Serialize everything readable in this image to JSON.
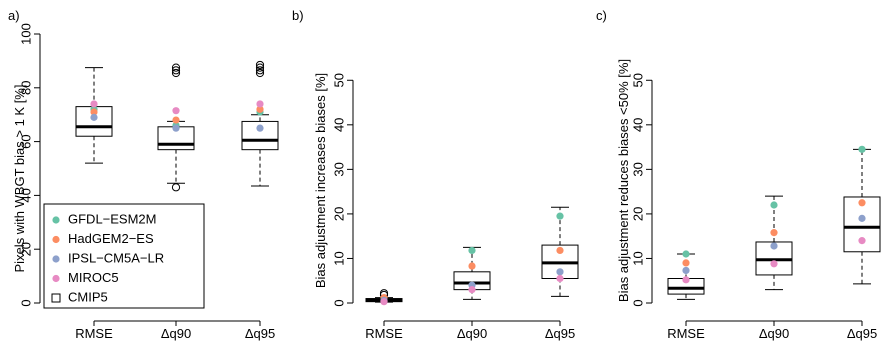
{
  "chart_data": [
    {
      "type": "boxplot",
      "panel_label": "a)",
      "ylabel": "Pixels with WBGT bias > 1 K [%]",
      "categories": [
        "RMSE",
        "Δq90",
        "Δq95"
      ],
      "ylim": [
        0,
        100
      ],
      "yticks": [
        0,
        20,
        40,
        60,
        80,
        100
      ],
      "boxes": [
        {
          "category": "RMSE",
          "whisker_low": 52,
          "q1": 62,
          "median": 65.5,
          "q3": 73,
          "whisker_high": 87.5,
          "outliers": []
        },
        {
          "category": "Δq90",
          "whisker_low": 44.5,
          "q1": 57,
          "median": 59,
          "q3": 65.5,
          "whisker_high": 67.5,
          "outliers": [
            43,
            85.5,
            86.5,
            87.5
          ]
        },
        {
          "category": "Δq95",
          "whisker_low": 43.5,
          "q1": 57,
          "median": 60.5,
          "q3": 67.5,
          "whisker_high": 70,
          "outliers": [
            85.5,
            86.5,
            87.5,
            88.5
          ]
        }
      ],
      "series": [
        {
          "name": "GFDL−ESM2M",
          "color": "#66c2a5",
          "values": [
            72,
            66,
            71
          ]
        },
        {
          "name": "HadGEM2−ES",
          "color": "#fc8d62",
          "values": [
            71,
            68,
            72
          ]
        },
        {
          "name": "IPSL−CM5A−LR",
          "color": "#8da0cb",
          "values": [
            69,
            65,
            65
          ]
        },
        {
          "name": "MIROC5",
          "color": "#e78ac3",
          "values": [
            74,
            71.5,
            74
          ]
        }
      ],
      "legend": {
        "placement": "bottom-left",
        "entries": [
          {
            "label": "GFDL−ESM2M",
            "marker": "dot",
            "color": "#66c2a5"
          },
          {
            "label": "HadGEM2−ES",
            "marker": "dot",
            "color": "#fc8d62"
          },
          {
            "label": "IPSL−CM5A−LR",
            "marker": "dot",
            "color": "#8da0cb"
          },
          {
            "label": "MIROC5",
            "marker": "dot",
            "color": "#e78ac3"
          },
          {
            "label": "CMIP5",
            "marker": "box",
            "color": "#000000"
          }
        ]
      }
    },
    {
      "type": "boxplot",
      "panel_label": "b)",
      "ylabel": "Bias adjustment increases biases [%]",
      "categories": [
        "RMSE",
        "Δq90",
        "Δq95"
      ],
      "ylim": [
        0,
        55
      ],
      "yticks": [
        0,
        10,
        20,
        30,
        40,
        50
      ],
      "boxes": [
        {
          "category": "RMSE",
          "whisker_low": 0.2,
          "q1": 0.3,
          "median": 0.6,
          "q3": 1.0,
          "whisker_high": 1.2,
          "outliers": [
            1.8,
            2.2
          ]
        },
        {
          "category": "Δq90",
          "whisker_low": 0.8,
          "q1": 3.0,
          "median": 4.5,
          "q3": 7.0,
          "whisker_high": 12.5,
          "outliers": []
        },
        {
          "category": "Δq95",
          "whisker_low": 1.5,
          "q1": 5.5,
          "median": 9.0,
          "q3": 13.0,
          "whisker_high": 21.5,
          "outliers": []
        }
      ],
      "series": [
        {
          "name": "GFDL−ESM2M",
          "color": "#66c2a5",
          "values": [
            0.4,
            11.8,
            19.5
          ]
        },
        {
          "name": "HadGEM2−ES",
          "color": "#fc8d62",
          "values": [
            1.2,
            8.3,
            11.8
          ]
        },
        {
          "name": "IPSL−CM5A−LR",
          "color": "#8da0cb",
          "values": [
            0.6,
            4.0,
            7.0
          ]
        },
        {
          "name": "MIROC5",
          "color": "#e78ac3",
          "values": [
            0.3,
            3.0,
            5.5
          ]
        }
      ]
    },
    {
      "type": "boxplot",
      "panel_label": "c)",
      "ylabel": "Bias adjustment reduces biases <50% [%]",
      "categories": [
        "RMSE",
        "Δq90",
        "Δq95"
      ],
      "ylim": [
        0,
        55
      ],
      "yticks": [
        0,
        10,
        20,
        30,
        40,
        50
      ],
      "boxes": [
        {
          "category": "RMSE",
          "whisker_low": 0.8,
          "q1": 2.0,
          "median": 3.3,
          "q3": 5.5,
          "whisker_high": 11.0,
          "outliers": []
        },
        {
          "category": "Δq90",
          "whisker_low": 3.0,
          "q1": 6.3,
          "median": 9.7,
          "q3": 13.7,
          "whisker_high": 24.0,
          "outliers": []
        },
        {
          "category": "Δq95",
          "whisker_low": 4.3,
          "q1": 11.5,
          "median": 17.0,
          "q3": 23.8,
          "whisker_high": 34.5,
          "outliers": []
        }
      ],
      "series": [
        {
          "name": "GFDL−ESM2M",
          "color": "#66c2a5",
          "values": [
            11.0,
            22.0,
            34.5
          ]
        },
        {
          "name": "HadGEM2−ES",
          "color": "#fc8d62",
          "values": [
            9.0,
            15.8,
            22.5
          ]
        },
        {
          "name": "IPSL−CM5A−LR",
          "color": "#8da0cb",
          "values": [
            7.3,
            12.8,
            19.0
          ]
        },
        {
          "name": "MIROC5",
          "color": "#e78ac3",
          "values": [
            5.2,
            8.8,
            14.0
          ]
        }
      ]
    }
  ]
}
